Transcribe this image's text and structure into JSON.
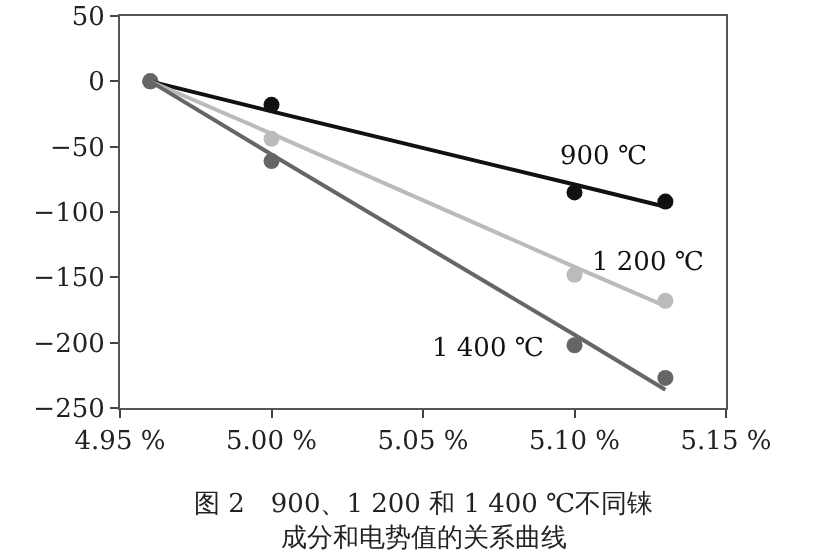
{
  "chart_data": {
    "type": "scatter",
    "x": [
      4.96,
      5.0,
      5.1,
      5.13
    ],
    "xlim": [
      4.95,
      5.15
    ],
    "xticks": [
      {
        "value": 4.95,
        "label": "4.95 %"
      },
      {
        "value": 5.0,
        "label": "5.00 %"
      },
      {
        "value": 5.05,
        "label": "5.05 %"
      },
      {
        "value": 5.1,
        "label": "5.10 %"
      },
      {
        "value": 5.15,
        "label": "5.15 %"
      }
    ],
    "ylim": [
      -250,
      50
    ],
    "yticks": [
      -250,
      -200,
      -150,
      -100,
      -50,
      0,
      50
    ],
    "grid": false,
    "marker": "circle",
    "series": [
      {
        "color": "#111111",
        "values": [
          0,
          -18,
          -85,
          -92
        ]
      },
      {
        "color": "#bbbbbb",
        "values": [
          0,
          -44,
          -148,
          -168
        ]
      },
      {
        "color": "#666666",
        "values": [
          0,
          -61,
          -202,
          -227
        ]
      },
      {
        "type": "line",
        "name": "900 ℃",
        "marker": "none",
        "color": "#111111",
        "values": [
          0,
          -23,
          -79,
          -96
        ]
      },
      {
        "type": "line",
        "name": "1 200 ℃",
        "marker": "none",
        "color": "#bbbbbb",
        "values": [
          0,
          -40,
          -142,
          -172
        ]
      },
      {
        "type": "line",
        "name": "1 400 ℃",
        "marker": "none",
        "color": "#666666",
        "values": [
          0,
          -56,
          -194,
          -236
        ]
      }
    ],
    "annotations": [
      "图 2　900、1 200 和 1 400 ℃不同铼成分和电势值的关系曲线"
    ]
  }
}
